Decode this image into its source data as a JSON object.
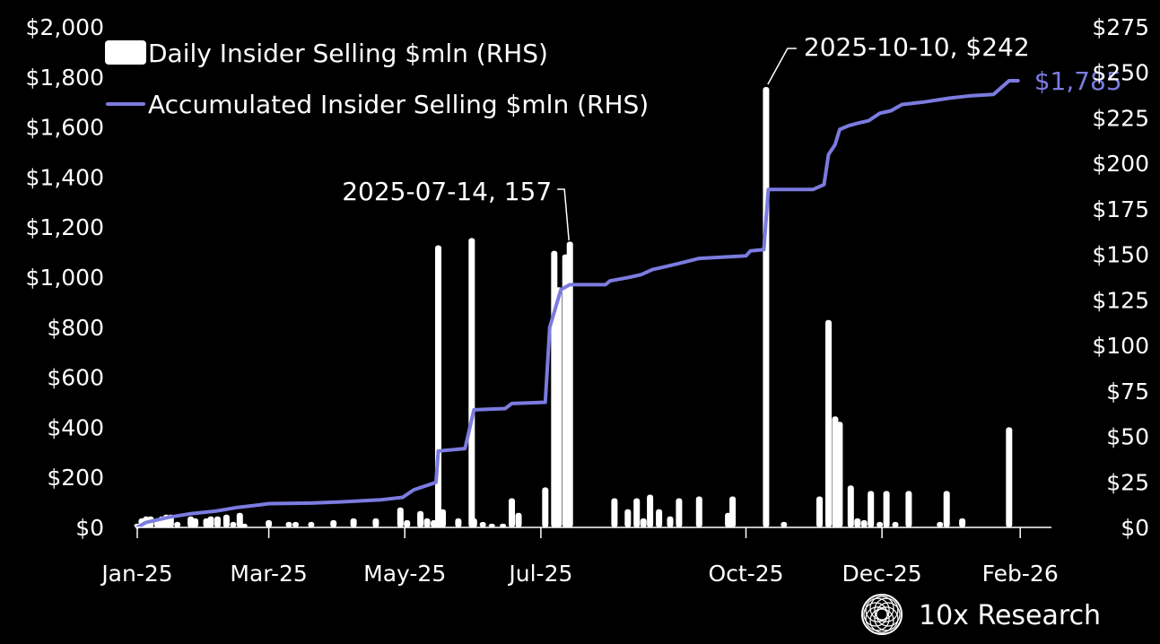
{
  "colors": {
    "background": "#000000",
    "bars": "#ffffff",
    "line": "#7b7be0",
    "text": "#ffffff",
    "axis": "#ffffff"
  },
  "chart_data": {
    "type": "bar+line",
    "title": "",
    "xlabel": "",
    "ylabel": "",
    "x_ticks": [
      "Jan-25",
      "Mar-25",
      "May-25",
      "Jul-25",
      "Oct-25",
      "Dec-25",
      "Feb-26"
    ],
    "x_range": [
      "2025-01-01",
      "2026-02-15"
    ],
    "y_left_ticks": [
      "$0",
      "$200",
      "$400",
      "$600",
      "$800",
      "$1,000",
      "$1,200",
      "$1,400",
      "$1,600",
      "$1,800",
      "$2,000"
    ],
    "y_left_range": [
      0,
      2000
    ],
    "y_right_ticks": [
      "$0",
      "$25",
      "$50",
      "$75",
      "$100",
      "$125",
      "$150",
      "$175",
      "$200",
      "$225",
      "$250",
      "$275"
    ],
    "y_right_range": [
      0,
      275
    ],
    "grid": false,
    "legend": {
      "placement": "top-left",
      "items": [
        {
          "label": "Daily Insider Selling $mln (RHS)",
          "marker": "bar"
        },
        {
          "label": "Accumulated Insider Selling $mln (RHS)",
          "marker": "line"
        }
      ]
    },
    "series": [
      {
        "name": "Daily Insider Selling $mln (RHS)",
        "kind": "bar",
        "axis": "right",
        "points": [
          [
            "2025-01-01",
            2
          ],
          [
            "2025-01-03",
            5
          ],
          [
            "2025-01-05",
            6
          ],
          [
            "2025-01-07",
            6
          ],
          [
            "2025-01-10",
            4
          ],
          [
            "2025-01-12",
            6
          ],
          [
            "2025-01-14",
            7
          ],
          [
            "2025-01-16",
            7
          ],
          [
            "2025-01-19",
            3
          ],
          [
            "2025-01-25",
            6
          ],
          [
            "2025-01-27",
            5
          ],
          [
            "2025-02-01",
            5
          ],
          [
            "2025-02-03",
            6
          ],
          [
            "2025-02-06",
            6
          ],
          [
            "2025-02-10",
            7
          ],
          [
            "2025-02-13",
            3
          ],
          [
            "2025-02-16",
            8
          ],
          [
            "2025-02-18",
            2
          ],
          [
            "2025-03-01",
            4
          ],
          [
            "2025-03-10",
            3
          ],
          [
            "2025-03-13",
            3
          ],
          [
            "2025-03-20",
            3
          ],
          [
            "2025-03-30",
            4
          ],
          [
            "2025-04-08",
            5
          ],
          [
            "2025-04-18",
            5
          ],
          [
            "2025-04-29",
            11
          ],
          [
            "2025-05-02",
            4
          ],
          [
            "2025-05-08",
            9
          ],
          [
            "2025-05-11",
            5
          ],
          [
            "2025-05-14",
            4
          ],
          [
            "2025-05-16",
            155
          ],
          [
            "2025-05-18",
            10
          ],
          [
            "2025-05-25",
            5
          ],
          [
            "2025-05-31",
            159
          ],
          [
            "2025-06-01",
            5
          ],
          [
            "2025-06-05",
            3
          ],
          [
            "2025-06-09",
            2
          ],
          [
            "2025-06-14",
            2
          ],
          [
            "2025-06-18",
            16
          ],
          [
            "2025-06-21",
            8
          ],
          [
            "2025-07-03",
            22
          ],
          [
            "2025-07-07",
            152
          ],
          [
            "2025-07-09",
            132
          ],
          [
            "2025-07-12",
            150
          ],
          [
            "2025-07-14",
            157
          ],
          [
            "2025-08-03",
            16
          ],
          [
            "2025-08-09",
            10
          ],
          [
            "2025-08-13",
            16
          ],
          [
            "2025-08-16",
            5
          ],
          [
            "2025-08-19",
            18
          ],
          [
            "2025-08-23",
            10
          ],
          [
            "2025-08-28",
            6
          ],
          [
            "2025-09-01",
            16
          ],
          [
            "2025-09-10",
            17
          ],
          [
            "2025-09-23",
            8
          ],
          [
            "2025-09-25",
            17
          ],
          [
            "2025-10-10",
            242
          ],
          [
            "2025-10-18",
            3
          ],
          [
            "2025-11-03",
            17
          ],
          [
            "2025-11-07",
            114
          ],
          [
            "2025-11-10",
            61
          ],
          [
            "2025-11-12",
            58
          ],
          [
            "2025-11-17",
            23
          ],
          [
            "2025-11-20",
            5
          ],
          [
            "2025-11-23",
            4
          ],
          [
            "2025-11-26",
            20
          ],
          [
            "2025-11-30",
            3
          ],
          [
            "2025-12-03",
            20
          ],
          [
            "2025-12-07",
            3
          ],
          [
            "2025-12-13",
            20
          ],
          [
            "2025-12-27",
            3
          ],
          [
            "2025-12-30",
            20
          ],
          [
            "2026-01-06",
            5
          ],
          [
            "2026-01-27",
            55
          ]
        ]
      },
      {
        "name": "Accumulated Insider Selling $mln (RHS)",
        "kind": "line",
        "axis": "left",
        "end_label": "$1,785",
        "points": [
          [
            "2025-01-01",
            0
          ],
          [
            "2025-01-05",
            20
          ],
          [
            "2025-01-15",
            40
          ],
          [
            "2025-01-25",
            55
          ],
          [
            "2025-02-05",
            65
          ],
          [
            "2025-02-15",
            80
          ],
          [
            "2025-02-25",
            90
          ],
          [
            "2025-03-01",
            95
          ],
          [
            "2025-03-20",
            97
          ],
          [
            "2025-04-05",
            103
          ],
          [
            "2025-04-20",
            110
          ],
          [
            "2025-04-30",
            120
          ],
          [
            "2025-05-05",
            150
          ],
          [
            "2025-05-15",
            180
          ],
          [
            "2025-05-16",
            305
          ],
          [
            "2025-05-28",
            315
          ],
          [
            "2025-06-01",
            470
          ],
          [
            "2025-06-15",
            475
          ],
          [
            "2025-06-18",
            495
          ],
          [
            "2025-07-03",
            500
          ],
          [
            "2025-07-05",
            800
          ],
          [
            "2025-07-10",
            950
          ],
          [
            "2025-07-14",
            970
          ],
          [
            "2025-07-30",
            970
          ],
          [
            "2025-08-01",
            985
          ],
          [
            "2025-08-10",
            1000
          ],
          [
            "2025-08-15",
            1010
          ],
          [
            "2025-08-20",
            1030
          ],
          [
            "2025-08-25",
            1040
          ],
          [
            "2025-09-01",
            1055
          ],
          [
            "2025-09-10",
            1075
          ],
          [
            "2025-09-20",
            1080
          ],
          [
            "2025-10-01",
            1085
          ],
          [
            "2025-10-03",
            1105
          ],
          [
            "2025-10-09",
            1110
          ],
          [
            "2025-10-11",
            1350
          ],
          [
            "2025-10-31",
            1350
          ],
          [
            "2025-11-05",
            1370
          ],
          [
            "2025-11-07",
            1490
          ],
          [
            "2025-11-10",
            1530
          ],
          [
            "2025-11-12",
            1590
          ],
          [
            "2025-11-16",
            1605
          ],
          [
            "2025-11-20",
            1615
          ],
          [
            "2025-11-25",
            1625
          ],
          [
            "2025-11-30",
            1655
          ],
          [
            "2025-12-05",
            1665
          ],
          [
            "2025-12-10",
            1690
          ],
          [
            "2025-12-20",
            1700
          ],
          [
            "2025-12-31",
            1715
          ],
          [
            "2026-01-10",
            1725
          ],
          [
            "2026-01-20",
            1730
          ],
          [
            "2026-01-27",
            1785
          ],
          [
            "2026-01-31",
            1785
          ]
        ]
      }
    ],
    "annotations": [
      {
        "text": "2025-07-14, 157",
        "x": "2025-07-14",
        "series": "Daily Insider Selling $mln (RHS)"
      },
      {
        "text": "2025-10-10, $242",
        "x": "2025-10-10",
        "series": "Daily Insider Selling $mln (RHS)"
      }
    ]
  },
  "brand": {
    "name": "10x Research",
    "logo_icon": "10x-research-logo-icon"
  }
}
